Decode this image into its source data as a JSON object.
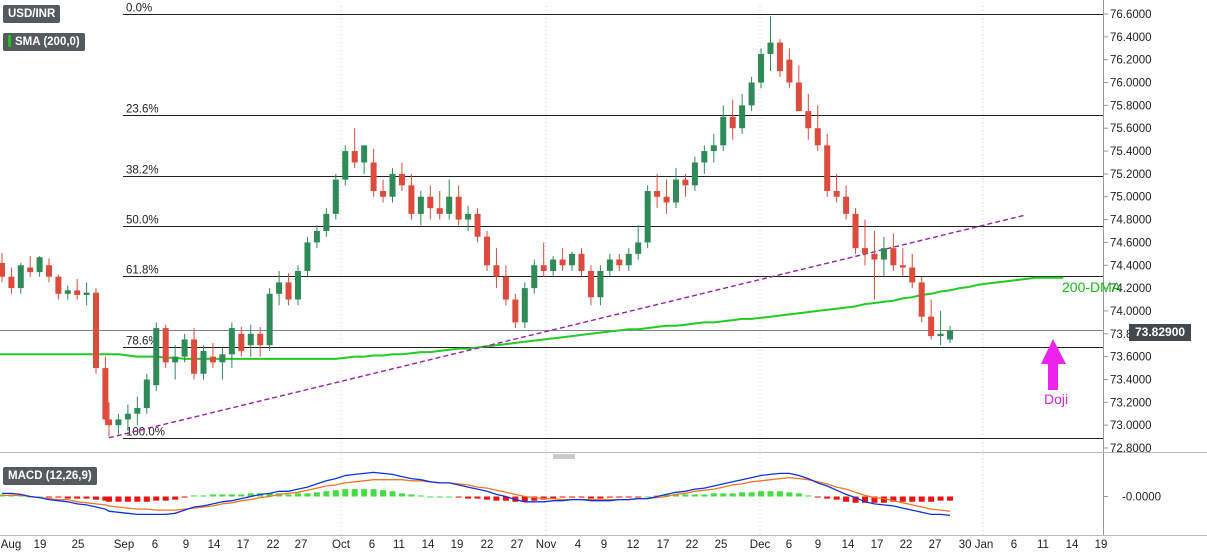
{
  "symbol": "USD/INR",
  "sma_label": "SMA (200,0)",
  "macd_label": "MACD (12,26,9)",
  "last_price": "73.82900",
  "annotations": {
    "dma": "200-DMA",
    "doji": "Doji"
  },
  "colors": {
    "up_candle": "#2e8b57",
    "down_candle": "#dc4b3c",
    "sma": "#22cc22",
    "trendline": "#9922aa",
    "arrow": "#ee22ee",
    "macd_line": "#1133dd",
    "signal_line": "#ee7722",
    "hist_pos": "#44dd44",
    "hist_neg": "#ee1111"
  },
  "chart_data": {
    "type": "candlestick",
    "y_axis": {
      "min": 72.8,
      "max": 76.6,
      "ticks": [
        "76.6000",
        "76.4000",
        "76.2000",
        "76.0000",
        "75.8000",
        "75.6000",
        "75.4000",
        "75.2000",
        "75.0000",
        "74.8000",
        "74.6000",
        "74.4000",
        "74.2000",
        "74.0000",
        "73.8000",
        "73.6000",
        "73.4000",
        "73.2000",
        "73.0000",
        "72.8000"
      ]
    },
    "x_axis": {
      "labels": [
        "Aug",
        "19",
        "25",
        "Sep",
        "6",
        "9",
        "14",
        "17",
        "22",
        "27",
        "Oct",
        "6",
        "11",
        "14",
        "19",
        "22",
        "27",
        "Nov",
        "4",
        "9",
        "12",
        "17",
        "22",
        "25",
        "Dec",
        "6",
        "9",
        "14",
        "17",
        "22",
        "27",
        "30 Jan",
        "6",
        "11",
        "14",
        "19"
      ]
    },
    "fibonacci": [
      {
        "label": "0.0%",
        "price": 76.6
      },
      {
        "label": "23.6%",
        "price": 75.72
      },
      {
        "label": "38.2%",
        "price": 75.18
      },
      {
        "label": "50.0%",
        "price": 74.74
      },
      {
        "label": "61.8%",
        "price": 74.31
      },
      {
        "label": "78.6%",
        "price": 73.68
      },
      {
        "label": "100.0%",
        "price": 72.89
      }
    ],
    "candles": [
      [
        74.42,
        74.51,
        74.25,
        74.3
      ],
      [
        74.3,
        74.38,
        74.15,
        74.2
      ],
      [
        74.2,
        74.42,
        74.15,
        74.4
      ],
      [
        74.38,
        74.48,
        74.3,
        74.34
      ],
      [
        74.34,
        74.48,
        74.3,
        74.47
      ],
      [
        74.4,
        74.46,
        74.25,
        74.3
      ],
      [
        74.3,
        74.32,
        74.1,
        74.15
      ],
      [
        74.15,
        74.22,
        74.1,
        74.18
      ],
      [
        74.18,
        74.28,
        74.1,
        74.14
      ],
      [
        74.14,
        74.25,
        74.05,
        74.16
      ],
      [
        74.16,
        74.2,
        73.45,
        73.5
      ],
      [
        73.5,
        73.6,
        73.0,
        73.05
      ],
      [
        73.05,
        73.2,
        72.9,
        73.0
      ],
      [
        73.0,
        73.1,
        72.92,
        73.05
      ],
      [
        73.05,
        73.18,
        72.95,
        73.1
      ],
      [
        73.1,
        73.25,
        73.0,
        73.15
      ],
      [
        73.15,
        73.45,
        73.1,
        73.4
      ],
      [
        73.35,
        73.9,
        73.3,
        73.85
      ],
      [
        73.85,
        73.88,
        73.5,
        73.55
      ],
      [
        73.55,
        73.7,
        73.4,
        73.6
      ],
      [
        73.6,
        73.8,
        73.55,
        73.75
      ],
      [
        73.75,
        73.85,
        73.4,
        73.45
      ],
      [
        73.45,
        73.7,
        73.4,
        73.65
      ],
      [
        73.6,
        73.72,
        73.5,
        73.55
      ],
      [
        73.55,
        73.68,
        73.4,
        73.62
      ],
      [
        73.62,
        73.9,
        73.5,
        73.85
      ],
      [
        73.8,
        73.86,
        73.6,
        73.65
      ],
      [
        73.7,
        73.88,
        73.6,
        73.8
      ],
      [
        73.8,
        73.86,
        73.6,
        73.7
      ],
      [
        73.7,
        74.2,
        73.65,
        74.15
      ],
      [
        74.15,
        74.35,
        74.05,
        74.25
      ],
      [
        74.25,
        74.33,
        74.05,
        74.1
      ],
      [
        74.1,
        74.4,
        74.05,
        74.35
      ],
      [
        74.35,
        74.65,
        74.3,
        74.6
      ],
      [
        74.6,
        74.75,
        74.55,
        74.7
      ],
      [
        74.7,
        74.9,
        74.65,
        74.85
      ],
      [
        74.85,
        75.2,
        74.8,
        75.15
      ],
      [
        75.15,
        75.45,
        75.1,
        75.4
      ],
      [
        75.4,
        75.6,
        75.25,
        75.3
      ],
      [
        75.3,
        75.45,
        75.2,
        75.45
      ],
      [
        75.3,
        75.42,
        75.0,
        75.05
      ],
      [
        75.05,
        75.15,
        74.95,
        75.0
      ],
      [
        75.0,
        75.25,
        74.95,
        75.2
      ],
      [
        75.2,
        75.3,
        75.05,
        75.1
      ],
      [
        75.1,
        75.2,
        74.8,
        74.85
      ],
      [
        74.85,
        75.05,
        74.75,
        75.0
      ],
      [
        75.0,
        75.1,
        74.8,
        74.9
      ],
      [
        74.9,
        75.05,
        74.8,
        74.85
      ],
      [
        74.85,
        75.15,
        74.8,
        75.0
      ],
      [
        75.0,
        75.1,
        74.75,
        74.8
      ],
      [
        74.8,
        74.92,
        74.7,
        74.85
      ],
      [
        74.85,
        74.9,
        74.6,
        74.65
      ],
      [
        74.65,
        74.7,
        74.35,
        74.4
      ],
      [
        74.4,
        74.55,
        74.2,
        74.3
      ],
      [
        74.3,
        74.4,
        74.05,
        74.1
      ],
      [
        74.1,
        74.15,
        73.85,
        73.9
      ],
      [
        73.9,
        74.25,
        73.85,
        74.2
      ],
      [
        74.2,
        74.45,
        74.15,
        74.4
      ],
      [
        74.4,
        74.6,
        74.3,
        74.35
      ],
      [
        74.35,
        74.48,
        74.3,
        74.45
      ],
      [
        74.45,
        74.55,
        74.35,
        74.4
      ],
      [
        74.4,
        74.52,
        74.35,
        74.5
      ],
      [
        74.5,
        74.55,
        74.3,
        74.35
      ],
      [
        74.35,
        74.4,
        74.05,
        74.12
      ],
      [
        74.12,
        74.4,
        74.05,
        74.35
      ],
      [
        74.35,
        74.5,
        74.3,
        74.45
      ],
      [
        74.45,
        74.5,
        74.35,
        74.4
      ],
      [
        74.4,
        74.55,
        74.35,
        74.5
      ],
      [
        74.5,
        74.75,
        74.45,
        74.6
      ],
      [
        74.6,
        75.1,
        74.55,
        75.05
      ],
      [
        75.05,
        75.2,
        74.9,
        75.0
      ],
      [
        75.0,
        75.15,
        74.85,
        74.95
      ],
      [
        74.95,
        75.25,
        74.9,
        75.15
      ],
      [
        75.15,
        75.2,
        75.0,
        75.1
      ],
      [
        75.1,
        75.35,
        75.05,
        75.3
      ],
      [
        75.3,
        75.45,
        75.2,
        75.4
      ],
      [
        75.4,
        75.55,
        75.3,
        75.45
      ],
      [
        75.45,
        75.8,
        75.4,
        75.7
      ],
      [
        75.7,
        75.85,
        75.5,
        75.6
      ],
      [
        75.6,
        75.9,
        75.55,
        75.8
      ],
      [
        75.8,
        76.05,
        75.75,
        76.0
      ],
      [
        76.0,
        76.3,
        75.95,
        76.25
      ],
      [
        76.25,
        76.58,
        76.1,
        76.35
      ],
      [
        76.35,
        76.38,
        76.05,
        76.1
      ],
      [
        76.2,
        76.3,
        75.95,
        76.0
      ],
      [
        76.0,
        76.15,
        75.75,
        75.75
      ],
      [
        75.75,
        75.9,
        75.5,
        75.6
      ],
      [
        75.6,
        75.8,
        75.4,
        75.45
      ],
      [
        75.45,
        75.55,
        75.0,
        75.05
      ],
      [
        75.05,
        75.2,
        74.95,
        75.0
      ],
      [
        75.0,
        75.1,
        74.8,
        74.85
      ],
      [
        74.85,
        74.9,
        74.5,
        74.55
      ],
      [
        74.55,
        74.8,
        74.4,
        74.5
      ],
      [
        74.5,
        74.7,
        74.1,
        74.45
      ],
      [
        74.45,
        74.65,
        74.3,
        74.55
      ],
      [
        74.55,
        74.68,
        74.35,
        74.4
      ],
      [
        74.4,
        74.55,
        74.3,
        74.38
      ],
      [
        74.38,
        74.5,
        74.2,
        74.25
      ],
      [
        74.25,
        74.3,
        73.9,
        73.95
      ],
      [
        73.95,
        74.1,
        73.75,
        73.78
      ],
      [
        73.78,
        74.0,
        73.7,
        73.8
      ],
      [
        73.75,
        73.87,
        73.72,
        73.83
      ]
    ],
    "sma200": [
      73.62,
      73.62,
      73.61,
      73.6,
      73.6,
      73.6,
      73.59,
      73.59,
      73.58,
      73.58,
      73.58,
      73.58,
      73.58,
      73.58,
      73.58,
      73.58,
      73.58,
      73.58,
      73.58,
      73.58,
      73.58,
      73.58,
      73.58,
      73.58,
      73.58,
      73.59,
      73.6,
      73.6,
      73.61,
      73.61,
      73.62,
      73.62,
      73.63,
      73.64,
      73.64,
      73.65,
      73.66,
      73.67,
      73.67,
      73.68,
      73.69,
      73.7,
      73.71,
      73.72,
      73.73,
      73.74,
      73.75,
      73.76,
      73.77,
      73.78,
      73.79,
      73.8,
      73.81,
      73.82,
      73.83,
      73.84,
      73.84,
      73.85,
      73.86,
      73.87,
      73.87,
      73.88,
      73.89,
      73.9,
      73.9,
      73.91,
      73.92,
      73.93,
      73.93,
      73.94,
      73.95,
      73.96,
      73.97,
      73.98,
      73.99,
      74.0,
      74.01,
      74.02,
      74.03,
      74.04,
      74.06,
      74.07,
      74.08,
      74.09,
      74.11,
      74.12,
      74.14,
      74.15,
      74.17,
      74.18,
      74.2,
      74.21,
      74.23,
      74.24,
      74.25,
      74.26,
      74.27,
      74.28,
      74.29,
      74.29,
      74.29,
      74.29
    ],
    "trendline": {
      "start": {
        "x": 12,
        "y": 72.89
      },
      "end": {
        "x": 109,
        "y": 74.84
      }
    },
    "macd": {
      "zero_label": "-0.0000",
      "histogram": [
        0.02,
        0.02,
        0.01,
        0.0,
        0.0,
        -0.01,
        -0.01,
        -0.02,
        -0.02,
        -0.02,
        -0.03,
        -0.04,
        -0.05,
        -0.05,
        -0.05,
        -0.05,
        -0.05,
        -0.04,
        -0.04,
        -0.03,
        -0.01,
        0.01,
        0.01,
        0.02,
        0.02,
        0.02,
        0.02,
        0.03,
        0.03,
        0.03,
        0.03,
        0.02,
        0.03,
        0.03,
        0.04,
        0.05,
        0.06,
        0.07,
        0.07,
        0.07,
        0.07,
        0.06,
        0.05,
        0.03,
        0.02,
        0.01,
        0.0,
        0.0,
        0.0,
        -0.01,
        -0.02,
        -0.02,
        -0.03,
        -0.04,
        -0.04,
        -0.05,
        -0.05,
        -0.04,
        -0.03,
        -0.02,
        -0.01,
        -0.01,
        -0.01,
        -0.02,
        -0.02,
        -0.01,
        -0.01,
        -0.01,
        -0.01,
        -0.0,
        0.01,
        0.02,
        0.02,
        0.02,
        0.02,
        0.02,
        0.03,
        0.03,
        0.03,
        0.04,
        0.04,
        0.05,
        0.05,
        0.05,
        0.04,
        0.03,
        0.01,
        -0.01,
        -0.02,
        -0.03,
        -0.05,
        -0.06,
        -0.06,
        -0.06,
        -0.06,
        -0.05,
        -0.05,
        -0.05,
        -0.05,
        -0.05,
        -0.04,
        -0.04
      ],
      "macd_line": [
        0.03,
        0.03,
        0.02,
        0.0,
        -0.01,
        -0.03,
        -0.04,
        -0.05,
        -0.07,
        -0.08,
        -0.1,
        -0.12,
        -0.14,
        -0.15,
        -0.16,
        -0.17,
        -0.17,
        -0.17,
        -0.17,
        -0.16,
        -0.13,
        -0.1,
        -0.09,
        -0.07,
        -0.05,
        -0.04,
        -0.02,
        -0.0,
        0.02,
        0.03,
        0.05,
        0.05,
        0.07,
        0.09,
        0.12,
        0.15,
        0.17,
        0.2,
        0.21,
        0.22,
        0.23,
        0.22,
        0.21,
        0.19,
        0.17,
        0.16,
        0.14,
        0.13,
        0.13,
        0.11,
        0.09,
        0.07,
        0.05,
        0.02,
        -0.0,
        -0.03,
        -0.05,
        -0.05,
        -0.05,
        -0.04,
        -0.04,
        -0.03,
        -0.03,
        -0.04,
        -0.04,
        -0.04,
        -0.03,
        -0.03,
        -0.02,
        -0.02,
        0.0,
        0.02,
        0.04,
        0.05,
        0.07,
        0.08,
        0.1,
        0.12,
        0.14,
        0.16,
        0.18,
        0.2,
        0.21,
        0.22,
        0.22,
        0.2,
        0.17,
        0.13,
        0.1,
        0.06,
        0.02,
        -0.01,
        -0.05,
        -0.07,
        -0.08,
        -0.09,
        -0.11,
        -0.13,
        -0.15,
        -0.17,
        -0.17,
        -0.18
      ],
      "signal_line": [
        0.01,
        0.01,
        0.01,
        0.0,
        -0.01,
        -0.02,
        -0.03,
        -0.03,
        -0.05,
        -0.06,
        -0.07,
        -0.08,
        -0.09,
        -0.1,
        -0.11,
        -0.12,
        -0.12,
        -0.13,
        -0.13,
        -0.13,
        -0.12,
        -0.11,
        -0.1,
        -0.09,
        -0.07,
        -0.06,
        -0.04,
        -0.03,
        -0.01,
        0.0,
        0.02,
        0.03,
        0.04,
        0.06,
        0.08,
        0.1,
        0.11,
        0.13,
        0.14,
        0.15,
        0.16,
        0.16,
        0.16,
        0.16,
        0.15,
        0.15,
        0.14,
        0.13,
        0.13,
        0.12,
        0.11,
        0.09,
        0.08,
        0.06,
        0.04,
        0.02,
        0.0,
        -0.01,
        -0.02,
        -0.02,
        -0.03,
        -0.03,
        -0.03,
        -0.03,
        -0.03,
        -0.03,
        -0.03,
        -0.03,
        -0.02,
        -0.02,
        -0.01,
        0.0,
        0.02,
        0.03,
        0.05,
        0.06,
        0.07,
        0.09,
        0.11,
        0.12,
        0.14,
        0.15,
        0.16,
        0.17,
        0.18,
        0.17,
        0.16,
        0.14,
        0.12,
        0.09,
        0.07,
        0.04,
        0.01,
        -0.01,
        -0.02,
        -0.04,
        -0.06,
        -0.08,
        -0.1,
        -0.12,
        -0.13,
        -0.14
      ]
    }
  }
}
